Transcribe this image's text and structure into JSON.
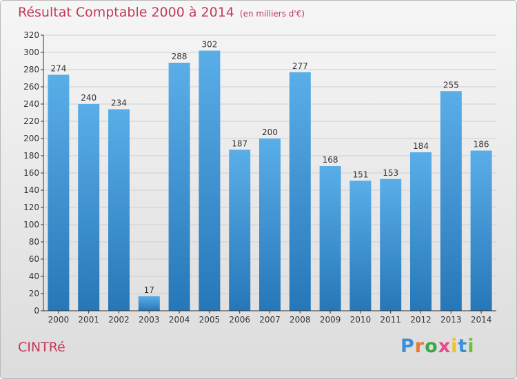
{
  "header": {
    "title": "Résultat Comptable 2000 à 2014",
    "subtitle": "(en milliers d'€)"
  },
  "footer": {
    "commune": "CINTRé",
    "brand": "Proxiti"
  },
  "colors": {
    "title": "#c23a5b",
    "bar_top": "#5aaee8",
    "bar_bottom": "#2677b8",
    "grid": "#cfcfcf",
    "axis": "#333333"
  },
  "chart_data": {
    "type": "bar",
    "title": "Résultat Comptable 2000 à 2014",
    "subtitle": "(en milliers d'€)",
    "xlabel": "",
    "ylabel": "",
    "categories": [
      "2000",
      "2001",
      "2002",
      "2003",
      "2004",
      "2005",
      "2006",
      "2007",
      "2008",
      "2009",
      "2010",
      "2011",
      "2012",
      "2013",
      "2014"
    ],
    "values": [
      274,
      240,
      234,
      17,
      288,
      302,
      187,
      200,
      277,
      168,
      151,
      153,
      184,
      255,
      186
    ],
    "ylim": [
      0,
      320
    ],
    "yticks": [
      0,
      20,
      40,
      60,
      80,
      100,
      120,
      140,
      160,
      180,
      200,
      220,
      240,
      260,
      280,
      300,
      320
    ],
    "grid": true
  }
}
